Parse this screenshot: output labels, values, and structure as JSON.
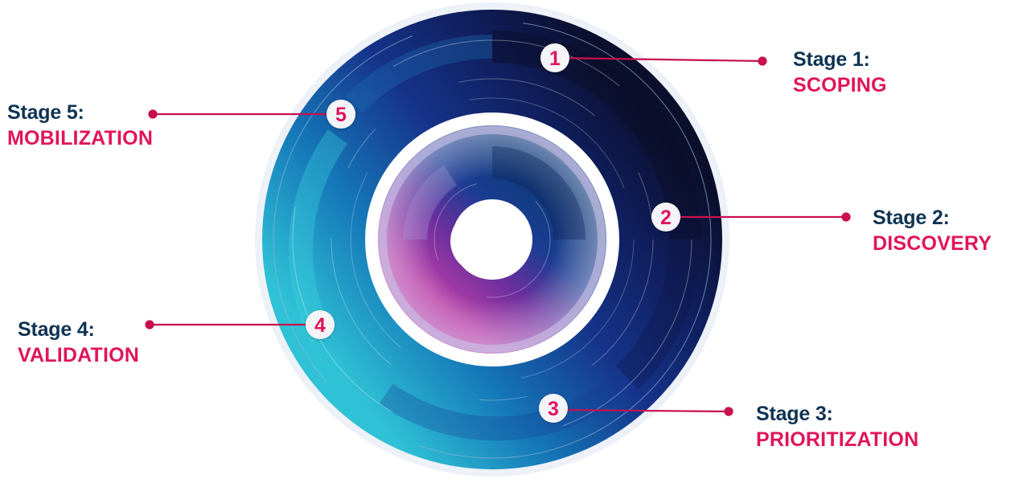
{
  "colors": {
    "stage_title": "#0f3352",
    "stage_name": "#e0155b",
    "connector": "#c8104f",
    "marker_fill": "#f4f4f6",
    "marker_text": "#e0155b"
  },
  "stages": [
    {
      "number": "1",
      "title": "Stage 1:",
      "name": "SCOPING"
    },
    {
      "number": "2",
      "title": "Stage 2:",
      "name": "DISCOVERY"
    },
    {
      "number": "3",
      "title": "Stage 3:",
      "name": "PRIORITIZATION"
    },
    {
      "number": "4",
      "title": "Stage 4:",
      "name": "VALIDATION"
    },
    {
      "number": "5",
      "title": "Stage 5:",
      "name": "MOBILIZATION"
    }
  ]
}
